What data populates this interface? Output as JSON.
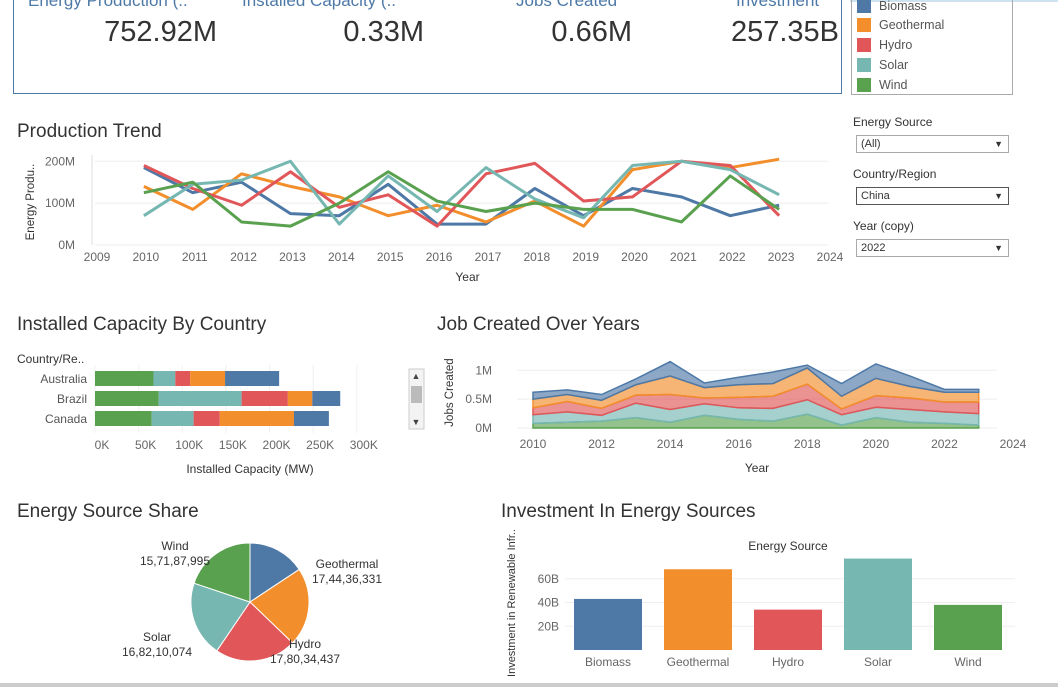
{
  "kpis": [
    {
      "label": "Energy Production (..",
      "value": "752.92M"
    },
    {
      "label": "Installed Capacity (..",
      "value": "0.33M"
    },
    {
      "label": "Jobs Created",
      "value": "0.66M"
    },
    {
      "label": "Investment",
      "value": "257.35B"
    }
  ],
  "legend": {
    "items": [
      {
        "label": "Biomass",
        "color": "#4e79a7"
      },
      {
        "label": "Geothermal",
        "color": "#f28e2b"
      },
      {
        "label": "Hydro",
        "color": "#e15759"
      },
      {
        "label": "Solar",
        "color": "#76b7b2"
      },
      {
        "label": "Wind",
        "color": "#59a14f"
      }
    ]
  },
  "filters": {
    "energy_source": {
      "label": "Energy Source",
      "value": "(All)"
    },
    "country": {
      "label": "Country/Region",
      "value": "China"
    },
    "year": {
      "label": "Year (copy)",
      "value": "2022"
    }
  },
  "titles": {
    "production_trend": "Production Trend",
    "installed_capacity": "Installed Capacity By Country",
    "jobs_created": "Job Created Over Years",
    "energy_share": "Energy Source Share",
    "investment": "Investment In Energy Sources"
  },
  "chart_data": [
    {
      "type": "line",
      "title": "Production Trend",
      "xlabel": "Year",
      "ylabel": "Energy Produ..",
      "x": [
        2010,
        2011,
        2012,
        2013,
        2014,
        2015,
        2016,
        2017,
        2018,
        2019,
        2020,
        2021,
        2022,
        2023
      ],
      "xlim": [
        2009,
        2024
      ],
      "x_ticks": [
        "2009",
        "2010",
        "2011",
        "2012",
        "2013",
        "2014",
        "2015",
        "2016",
        "2017",
        "2018",
        "2019",
        "2020",
        "2021",
        "2022",
        "2023",
        "2024"
      ],
      "ylim": [
        0,
        215
      ],
      "y_ticks": [
        {
          "v": 0,
          "t": "0M"
        },
        {
          "v": 100,
          "t": "100M"
        },
        {
          "v": 200,
          "t": "200M"
        }
      ],
      "series": [
        {
          "name": "Biomass",
          "color": "#4e79a7",
          "values": [
            185,
            125,
            150,
            75,
            70,
            145,
            50,
            50,
            135,
            70,
            135,
            115,
            70,
            95
          ]
        },
        {
          "name": "Geothermal",
          "color": "#f28e2b",
          "values": [
            140,
            85,
            170,
            140,
            115,
            70,
            95,
            55,
            105,
            45,
            180,
            200,
            185,
            205
          ]
        },
        {
          "name": "Hydro",
          "color": "#e15759",
          "values": [
            190,
            135,
            95,
            175,
            90,
            120,
            45,
            170,
            195,
            105,
            115,
            200,
            190,
            70
          ]
        },
        {
          "name": "Solar",
          "color": "#76b7b2",
          "values": [
            70,
            145,
            155,
            200,
            50,
            165,
            80,
            185,
            110,
            65,
            190,
            200,
            180,
            120
          ]
        },
        {
          "name": "Wind",
          "color": "#59a14f",
          "values": [
            125,
            150,
            55,
            45,
            100,
            175,
            105,
            80,
            100,
            85,
            85,
            55,
            165,
            85
          ]
        }
      ]
    },
    {
      "type": "bar",
      "orientation": "horizontal-stacked",
      "title": "Installed Capacity By Country",
      "xlabel": "Installed Capacity (MW)",
      "ylabel": "Country/Re..",
      "categories": [
        "Australia",
        "Brazil",
        "Canada"
      ],
      "xlim": [
        0,
        330
      ],
      "x_ticks": [
        {
          "v": 0,
          "t": "0K"
        },
        {
          "v": 50,
          "t": "50K"
        },
        {
          "v": 100,
          "t": "100K"
        },
        {
          "v": 150,
          "t": "150K"
        },
        {
          "v": 200,
          "t": "200K"
        },
        {
          "v": 250,
          "t": "250K"
        },
        {
          "v": 300,
          "t": "300K"
        }
      ],
      "series": [
        {
          "name": "Wind",
          "color": "#59a14f",
          "values": [
            67,
            73,
            65
          ]
        },
        {
          "name": "Solar",
          "color": "#76b7b2",
          "values": [
            25,
            95,
            48
          ]
        },
        {
          "name": "Hydro",
          "color": "#e15759",
          "values": [
            17,
            53,
            30
          ]
        },
        {
          "name": "Geothermal",
          "color": "#f28e2b",
          "values": [
            40,
            28,
            85
          ]
        },
        {
          "name": "Biomass",
          "color": "#4e79a7",
          "values": [
            62,
            32,
            40
          ]
        }
      ]
    },
    {
      "type": "area",
      "title": "Job Created Over Years",
      "xlabel": "Year",
      "ylabel": "Jobs Created",
      "x": [
        2010,
        2011,
        2012,
        2013,
        2014,
        2015,
        2016,
        2017,
        2018,
        2019,
        2020,
        2021,
        2022,
        2023
      ],
      "xlim": [
        2010,
        2024
      ],
      "x_ticks": [
        "2010",
        "2012",
        "2014",
        "2016",
        "2018",
        "2020",
        "2022",
        "2024"
      ],
      "ylim": [
        0,
        1.3
      ],
      "y_ticks": [
        {
          "v": 0,
          "t": "0M"
        },
        {
          "v": 0.5,
          "t": "0.5M"
        },
        {
          "v": 1,
          "t": "1M"
        }
      ],
      "series": [
        {
          "name": "Wind",
          "color": "#59a14f",
          "values": [
            0.08,
            0.1,
            0.12,
            0.18,
            0.1,
            0.22,
            0.15,
            0.12,
            0.24,
            0.05,
            0.18,
            0.1,
            0.08,
            0.05
          ]
        },
        {
          "name": "Solar",
          "color": "#76b7b2",
          "values": [
            0.15,
            0.18,
            0.1,
            0.25,
            0.22,
            0.2,
            0.2,
            0.22,
            0.25,
            0.18,
            0.18,
            0.22,
            0.2,
            0.2
          ]
        },
        {
          "name": "Hydro",
          "color": "#e15759",
          "values": [
            0.12,
            0.18,
            0.12,
            0.14,
            0.26,
            0.1,
            0.18,
            0.21,
            0.27,
            0.1,
            0.2,
            0.2,
            0.17,
            0.2
          ]
        },
        {
          "name": "Geothermal",
          "color": "#f28e2b",
          "values": [
            0.15,
            0.12,
            0.14,
            0.18,
            0.32,
            0.18,
            0.22,
            0.22,
            0.28,
            0.22,
            0.3,
            0.2,
            0.17,
            0.17
          ]
        },
        {
          "name": "Biomass",
          "color": "#4e79a7",
          "values": [
            0.12,
            0.08,
            0.1,
            0.1,
            0.25,
            0.08,
            0.13,
            0.2,
            0.05,
            0.22,
            0.25,
            0.18,
            0.05,
            0.05
          ]
        }
      ]
    },
    {
      "type": "pie",
      "title": "Energy Source Share",
      "slices": [
        {
          "name": "Biomass",
          "value": "",
          "num": 19,
          "color": "#4e79a7"
        },
        {
          "name": "Geothermal",
          "value": "17,44,36,331",
          "num": 26,
          "color": "#f28e2b"
        },
        {
          "name": "Hydro",
          "value": "17,80,34,437",
          "num": 27,
          "color": "#e15759"
        },
        {
          "name": "Solar",
          "value": "16,82,10,074",
          "num": 25,
          "color": "#76b7b2"
        },
        {
          "name": "Wind",
          "value": "15,71,87,995",
          "num": 24,
          "color": "#59a14f"
        }
      ]
    },
    {
      "type": "bar",
      "title": "Investment In Energy Sources",
      "header": "Energy Source",
      "ylabel": "Investment in Renewable Infr..",
      "categories": [
        "Biomass",
        "Geothermal",
        "Hydro",
        "Solar",
        "Wind"
      ],
      "colors": [
        "#4e79a7",
        "#f28e2b",
        "#e15759",
        "#76b7b2",
        "#59a14f"
      ],
      "values": [
        43,
        68,
        34,
        77,
        38
      ],
      "ylim": [
        0,
        80
      ],
      "y_ticks": [
        {
          "v": 20,
          "t": "20B"
        },
        {
          "v": 40,
          "t": "40B"
        },
        {
          "v": 60,
          "t": "60B"
        }
      ]
    }
  ]
}
